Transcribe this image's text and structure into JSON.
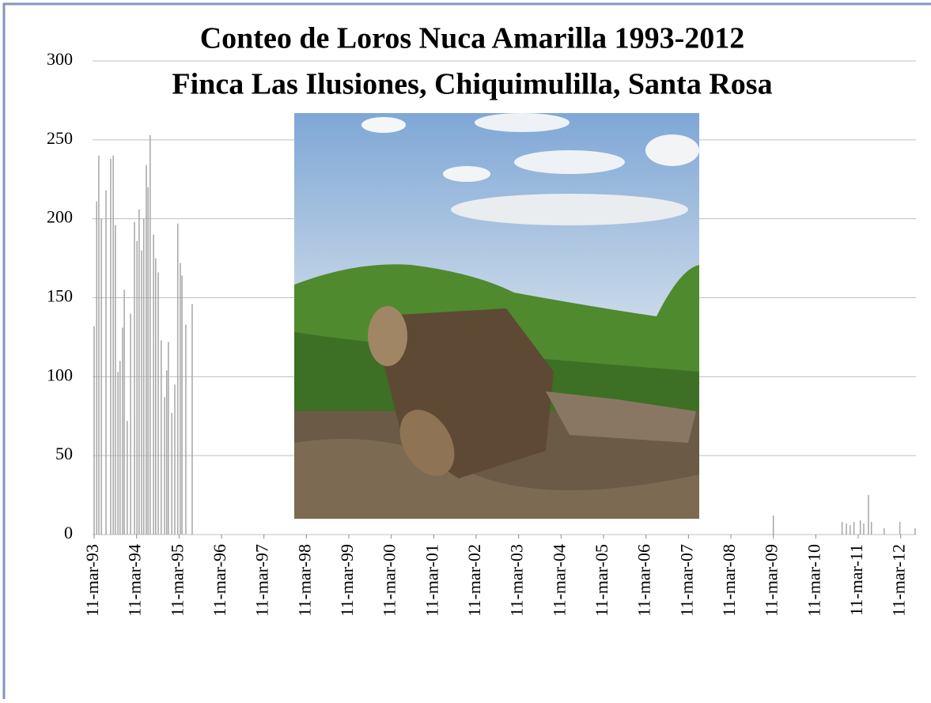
{
  "chart_data": {
    "type": "bar",
    "title": "Conteo de Loros Nuca Amarilla 1993-2012",
    "subtitle": "Finca Las Ilusiones, Chiquimulilla, Santa Rosa",
    "x": [
      1993.19,
      1993.25,
      1993.3,
      1993.36,
      1993.47,
      1993.58,
      1993.64,
      1993.69,
      1993.75,
      1993.8,
      1993.86,
      1993.9,
      1993.97,
      1994.05,
      1994.14,
      1994.2,
      1994.25,
      1994.31,
      1994.36,
      1994.42,
      1994.46,
      1994.51,
      1994.59,
      1994.64,
      1994.7,
      1994.77,
      1994.85,
      1994.9,
      1994.94,
      1995.02,
      1995.09,
      1995.16,
      1995.22,
      1995.26,
      1995.35,
      1995.5,
      2009.19,
      2010.81,
      2010.91,
      2011.0,
      2011.09,
      2011.24,
      2011.32,
      2011.43,
      2011.5,
      2011.8,
      2012.17,
      2012.53
    ],
    "values": [
      132,
      211,
      240,
      200,
      218,
      238,
      240,
      196,
      103,
      110,
      131,
      155,
      72,
      140,
      198,
      186,
      206,
      180,
      200,
      234,
      220,
      253,
      190,
      175,
      166,
      123,
      87,
      104,
      122,
      77,
      95,
      197,
      172,
      164,
      133,
      146,
      12,
      8,
      7,
      6,
      8,
      9,
      7,
      25,
      8,
      4,
      8,
      4
    ],
    "color": "#a6a6a6",
    "xlim": [
      1993.19,
      2012.55
    ],
    "xticks": [
      {
        "value": 1993.19,
        "label": "11-mar-93"
      },
      {
        "value": 1994.19,
        "label": "11-mar-94"
      },
      {
        "value": 1995.19,
        "label": "11-mar-95"
      },
      {
        "value": 1996.19,
        "label": "11-mar-96"
      },
      {
        "value": 1997.19,
        "label": "11-mar-97"
      },
      {
        "value": 1998.19,
        "label": "11-mar-98"
      },
      {
        "value": 1999.19,
        "label": "11-mar-99"
      },
      {
        "value": 2000.19,
        "label": "11-mar-00"
      },
      {
        "value": 2001.19,
        "label": "11-mar-01"
      },
      {
        "value": 2002.19,
        "label": "11-mar-02"
      },
      {
        "value": 2003.19,
        "label": "11-mar-03"
      },
      {
        "value": 2004.19,
        "label": "11-mar-04"
      },
      {
        "value": 2005.19,
        "label": "11-mar-05"
      },
      {
        "value": 2006.19,
        "label": "11-mar-06"
      },
      {
        "value": 2007.19,
        "label": "11-mar-07"
      },
      {
        "value": 2008.19,
        "label": "11-mar-08"
      },
      {
        "value": 2009.19,
        "label": "11-mar-09"
      },
      {
        "value": 2010.19,
        "label": "11-mar-10"
      },
      {
        "value": 2011.19,
        "label": "11-mar-11"
      },
      {
        "value": 2012.19,
        "label": "11-mar-12"
      }
    ],
    "ylim": [
      0,
      300
    ],
    "yticks": [
      0,
      50,
      100,
      150,
      200,
      250,
      300
    ],
    "grid": true
  }
}
